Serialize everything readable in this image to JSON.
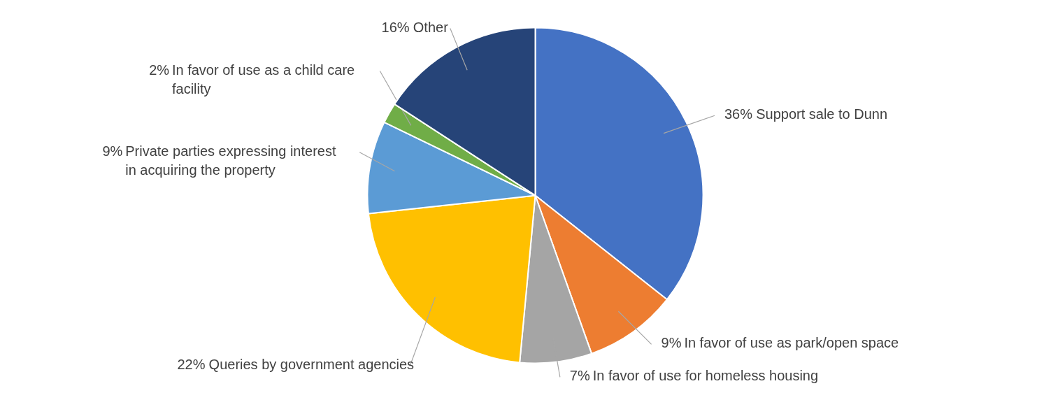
{
  "chart_data": {
    "type": "pie",
    "categories": [
      "Support sale to Dunn",
      "In favor of use as park/open space",
      "In favor of use for homeless housing",
      "Queries by government agencies",
      "Private parties expressing interest in acquiring the property",
      "In favor of use as a child care facility",
      "Other"
    ],
    "values": [
      36,
      9,
      7,
      22,
      9,
      2,
      16
    ],
    "value_labels": [
      "36%",
      "9%",
      "7%",
      "22%",
      "9%",
      "2%",
      "16%"
    ],
    "colors": [
      "#4472c4",
      "#ed7d31",
      "#a5a5a5",
      "#ffc000",
      "#5b9bd5",
      "#70ad47",
      "#264478"
    ],
    "legend": false
  }
}
